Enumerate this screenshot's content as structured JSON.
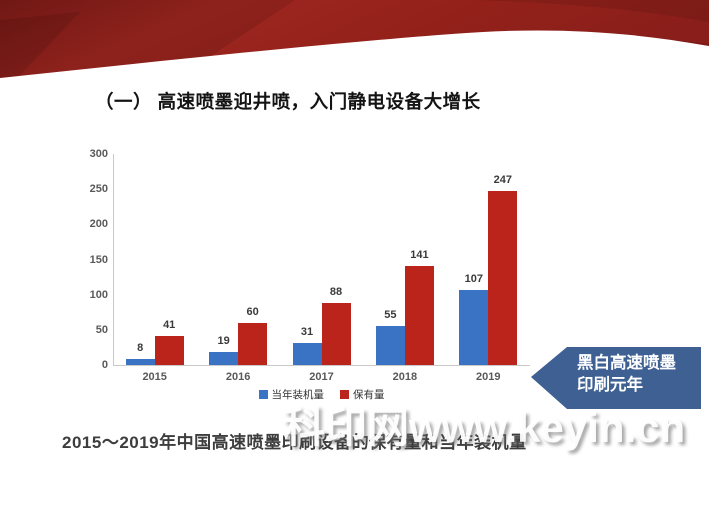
{
  "title": "（一） 高速喷墨迎井喷，入门静电设备大增长",
  "chart_data": {
    "type": "bar",
    "categories": [
      "2015",
      "2016",
      "2017",
      "2018",
      "2019"
    ],
    "series": [
      {
        "name": "当年装机量",
        "color": "#3A72C4",
        "values": [
          8,
          19,
          31,
          55,
          107
        ]
      },
      {
        "name": "保有量",
        "color": "#BA241A",
        "values": [
          41,
          60,
          88,
          141,
          247
        ]
      }
    ],
    "title": "",
    "xlabel": "",
    "ylabel": "",
    "ylim": [
      0,
      300
    ],
    "yticks": [
      0,
      50,
      100,
      150,
      200,
      250,
      300
    ],
    "grid": false,
    "legend_position": "bottom"
  },
  "caption": "2015～2019年中国高速喷墨印刷设备的保有量和当年装机量",
  "banner": {
    "line1": "黑白高速喷墨",
    "line2": "印刷元年"
  },
  "watermark": "科印网www.keyin.cn",
  "colors": {
    "bar_blue": "#3A72C4",
    "bar_red": "#BA241A",
    "banner_blue": "#3E6092",
    "ribbon_red": "#9A231D",
    "ribbon_red_dark": "#7E1B17",
    "axis_gray": "#C9C9C9",
    "tick_text": "#595959"
  }
}
